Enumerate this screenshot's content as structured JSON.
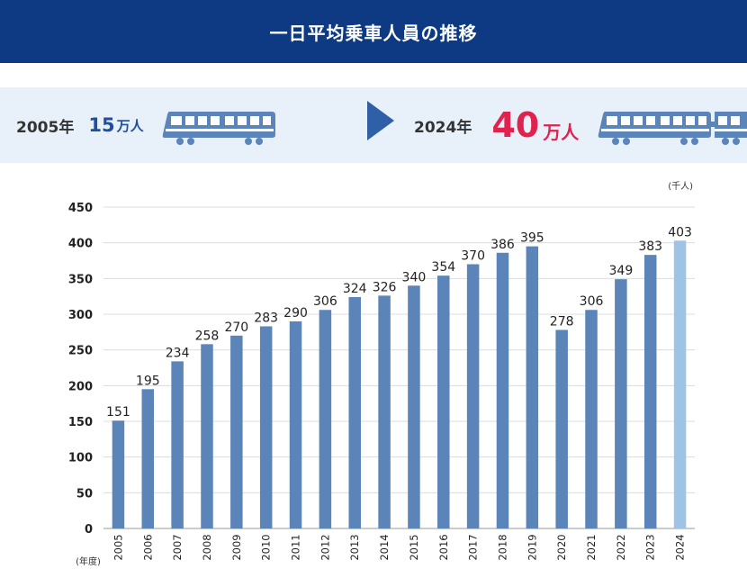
{
  "header": {
    "title": "一日平均乗車人員の推移"
  },
  "summary": {
    "start_year": "2005年",
    "start_value": "15",
    "start_unit": "万人",
    "end_year": "2024年",
    "end_value": "40",
    "end_unit": "万人"
  },
  "icons": [
    "train-icon",
    "arrow-right-icon"
  ],
  "colors": {
    "header_bg": "#0d3a82",
    "bar": "#5b84b8",
    "bar_highlight": "#9ec3e4",
    "accent_red": "#e0224e"
  },
  "chart_data": {
    "type": "bar",
    "title": "",
    "ylabel": "(千人)",
    "xlabel": "(年度)",
    "ylim": [
      0,
      450
    ],
    "yticks": [
      0,
      50,
      100,
      150,
      200,
      250,
      300,
      350,
      400,
      450
    ],
    "grid": true,
    "categories": [
      "2005",
      "2006",
      "2007",
      "2008",
      "2009",
      "2010",
      "2011",
      "2012",
      "2013",
      "2014",
      "2015",
      "2016",
      "2017",
      "2018",
      "2019",
      "2020",
      "2021",
      "2022",
      "2023",
      "2024"
    ],
    "values": [
      151,
      195,
      234,
      258,
      270,
      283,
      290,
      306,
      324,
      326,
      340,
      354,
      370,
      386,
      395,
      278,
      306,
      349,
      383,
      403
    ],
    "highlight_category": "2024"
  }
}
